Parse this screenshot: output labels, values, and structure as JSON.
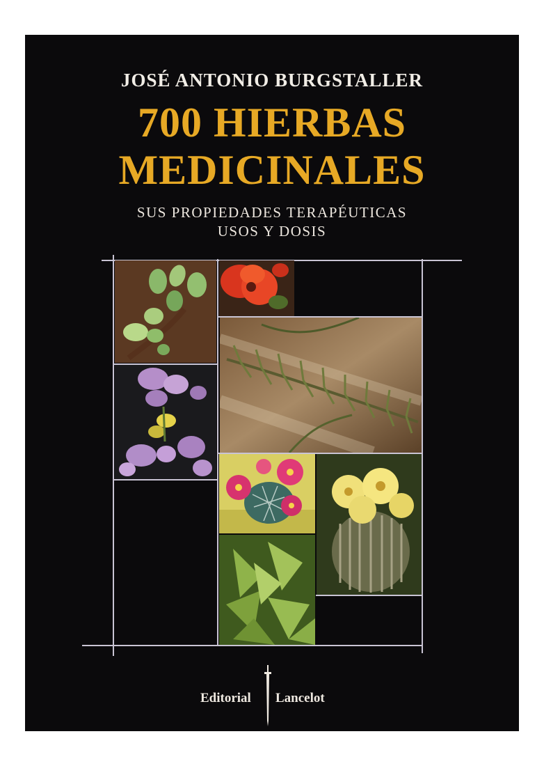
{
  "cover": {
    "author": "JOSÉ ANTONIO BURGSTALLER",
    "title_line1": "700 HIERBAS",
    "title_line2": "MEDICINALES",
    "subtitle_line1": "SUS PROPIEDADES TERAPÉUTICAS",
    "subtitle_line2": "USOS Y DOSIS",
    "publisher_left": "Editorial",
    "publisher_right": "Lancelot"
  },
  "colors": {
    "background": "#0b0a0c",
    "title": "#e7a925",
    "text": "#f1ede6",
    "frame": "#c9c4d4"
  },
  "photos": [
    {
      "name": "green-succulent-shoot-photo"
    },
    {
      "name": "red-flower-photo"
    },
    {
      "name": "rosemary-branch-photo"
    },
    {
      "name": "purple-flowers-photo"
    },
    {
      "name": "pink-flowering-cactus-photo"
    },
    {
      "name": "yellow-flowering-cactus-photo"
    },
    {
      "name": "green-leaves-photo"
    }
  ]
}
